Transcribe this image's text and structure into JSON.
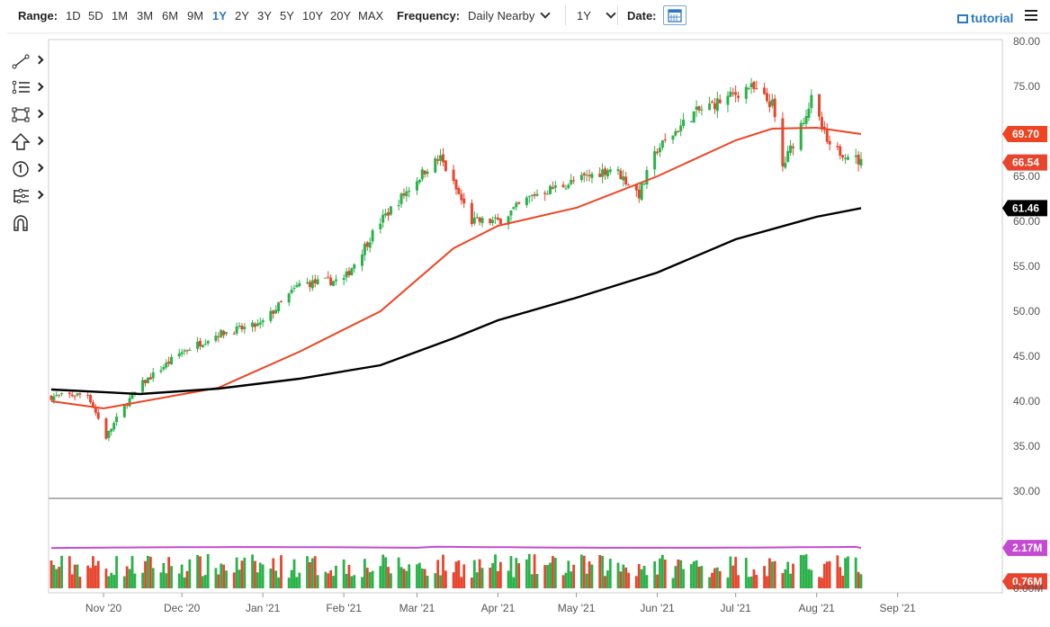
{
  "toolbar": {
    "range_label": "Range:",
    "ranges": [
      "1D",
      "5D",
      "1M",
      "3M",
      "6M",
      "9M",
      "1Y",
      "2Y",
      "3Y",
      "5Y",
      "10Y",
      "20Y",
      "MAX"
    ],
    "active_range": "1Y",
    "frequency_label": "Frequency:",
    "frequency_value": "Daily Nearby",
    "period_value": "1Y",
    "date_label": "Date:",
    "tutorial_label": "tutorial"
  },
  "sidebar_tools": [
    "line-tool-icon",
    "fib-tool-icon",
    "rectangle-tool-icon",
    "arrow-tool-icon",
    "counter-tool-icon",
    "pitchfork-tool-icon",
    "magnet-icon"
  ],
  "colors": {
    "up": "#2ab24a",
    "down": "#e8452e",
    "ma_fast": "#ee4422",
    "ma_slow": "#000000",
    "volume_avg": "#c44bd1",
    "accent": "#2a78c2"
  },
  "chart_data": [
    {
      "type": "candlestick",
      "x_ticks": [
        "Nov '20",
        "Dec '20",
        "Jan '21",
        "Feb '21",
        "Mar '21",
        "Apr '21",
        "May '21",
        "Jun '21",
        "Jul '21",
        "Aug '21",
        "Sep '21"
      ],
      "y_ticks": [
        "80.00",
        "75.00",
        "70.00",
        "65.00",
        "60.00",
        "55.00",
        "50.00",
        "45.00",
        "40.00",
        "35.00",
        "30.00"
      ],
      "ylim": [
        30,
        80
      ],
      "price_path": [
        {
          "date": "2020-10-12",
          "close": 40.5
        },
        {
          "date": "2020-10-26",
          "close": 40.8
        },
        {
          "date": "2020-11-02",
          "close": 36.0
        },
        {
          "date": "2020-11-09",
          "close": 39.5
        },
        {
          "date": "2020-11-16",
          "close": 42.0
        },
        {
          "date": "2020-12-01",
          "close": 45.5
        },
        {
          "date": "2020-12-15",
          "close": 47.5
        },
        {
          "date": "2020-12-31",
          "close": 48.5
        },
        {
          "date": "2021-01-15",
          "close": 53.0
        },
        {
          "date": "2021-02-01",
          "close": 53.5
        },
        {
          "date": "2021-02-15",
          "close": 60.0
        },
        {
          "date": "2021-03-05",
          "close": 66.0
        },
        {
          "date": "2021-03-10",
          "close": 67.0
        },
        {
          "date": "2021-03-22",
          "close": 60.0
        },
        {
          "date": "2021-04-01",
          "close": 60.0
        },
        {
          "date": "2021-04-15",
          "close": 63.0
        },
        {
          "date": "2021-05-01",
          "close": 64.5
        },
        {
          "date": "2021-05-15",
          "close": 66.0
        },
        {
          "date": "2021-05-25",
          "close": 63.0
        },
        {
          "date": "2021-06-01",
          "close": 68.0
        },
        {
          "date": "2021-06-15",
          "close": 72.0
        },
        {
          "date": "2021-06-30",
          "close": 74.0
        },
        {
          "date": "2021-07-06",
          "close": 75.0
        },
        {
          "date": "2021-07-15",
          "close": 73.0
        },
        {
          "date": "2021-07-19",
          "close": 66.0
        },
        {
          "date": "2021-07-30",
          "close": 73.5
        },
        {
          "date": "2021-08-06",
          "close": 68.0
        },
        {
          "date": "2021-08-13",
          "close": 67.5
        },
        {
          "date": "2021-08-18",
          "close": 66.5
        }
      ],
      "last_close": "66.54",
      "series": [
        {
          "name": "moving average (fast)",
          "label": "69.70",
          "points": [
            {
              "date": "2020-10-12",
              "value": 40.0
            },
            {
              "date": "2020-11-01",
              "value": 39.2
            },
            {
              "date": "2020-12-15",
              "value": 41.5
            },
            {
              "date": "2021-01-15",
              "value": 45.5
            },
            {
              "date": "2021-02-15",
              "value": 50.0
            },
            {
              "date": "2021-03-15",
              "value": 57.0
            },
            {
              "date": "2021-04-01",
              "value": 59.5
            },
            {
              "date": "2021-05-01",
              "value": 61.5
            },
            {
              "date": "2021-06-01",
              "value": 65.0
            },
            {
              "date": "2021-07-01",
              "value": 69.0
            },
            {
              "date": "2021-07-15",
              "value": 70.3
            },
            {
              "date": "2021-08-01",
              "value": 70.4
            },
            {
              "date": "2021-08-18",
              "value": 69.7
            }
          ]
        },
        {
          "name": "moving average (slow)",
          "label": "61.46",
          "points": [
            {
              "date": "2020-10-12",
              "value": 41.3
            },
            {
              "date": "2020-11-15",
              "value": 40.8
            },
            {
              "date": "2020-12-15",
              "value": 41.4
            },
            {
              "date": "2021-01-15",
              "value": 42.5
            },
            {
              "date": "2021-02-15",
              "value": 44.0
            },
            {
              "date": "2021-03-15",
              "value": 47.0
            },
            {
              "date": "2021-04-01",
              "value": 49.0
            },
            {
              "date": "2021-05-01",
              "value": 51.5
            },
            {
              "date": "2021-06-01",
              "value": 54.3
            },
            {
              "date": "2021-07-01",
              "value": 58.0
            },
            {
              "date": "2021-08-01",
              "value": 60.5
            },
            {
              "date": "2021-08-18",
              "value": 61.46
            }
          ]
        }
      ]
    },
    {
      "type": "bar",
      "x_ticks": [
        "Nov '20",
        "Dec '20",
        "Jan '21",
        "Feb '21",
        "Mar '21",
        "Apr '21",
        "May '21",
        "Jun '21",
        "Jul '21",
        "Aug '21",
        "Sep '21"
      ],
      "y_ticks": [
        "0.00M"
      ],
      "volume_avg_label": "2.17M",
      "last_volume_label": "0.76M",
      "volume_avg_level": 2.17,
      "last_volume": 0.76
    }
  ]
}
